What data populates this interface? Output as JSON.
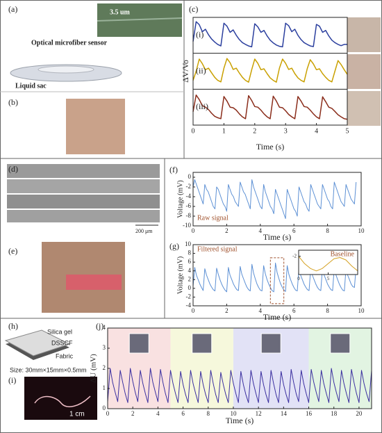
{
  "panels": [
    "(a)",
    "(b)",
    "(c)",
    "(d)",
    "(e)",
    "(f)",
    "(g)",
    "(h)",
    "(i)",
    "(j)"
  ],
  "texts": {
    "scale_a": "3.5 um",
    "sensor": "Optical microfiber sensor",
    "sac": "Liquid sac",
    "scale_d": "200 μm",
    "silica": "Silica gel",
    "dsscf": "DSSCF",
    "fabric": "Fabric",
    "size": "Size: 30mm×15mm×0.5mm",
    "cm": "1 cm"
  },
  "chart_data": [
    {
      "type": "line",
      "ylabel": "ΔV/Vo",
      "xlabel": "Time (s)",
      "xlim": [
        0,
        5
      ],
      "xticks": [
        0,
        1,
        2,
        3,
        4,
        5
      ],
      "ylim": [
        0,
        1
      ],
      "x": [
        0,
        0.1,
        0.2,
        0.3,
        0.4,
        0.5,
        0.6,
        0.7,
        0.8,
        0.9,
        1,
        1.1,
        1.2,
        1.3,
        1.4,
        1.5,
        1.6,
        1.7,
        1.8,
        1.9,
        2,
        2.1,
        2.2,
        2.3,
        2.4,
        2.5,
        2.6,
        2.7,
        2.8,
        2.9,
        3,
        3.1,
        3.2,
        3.3,
        3.4,
        3.5,
        3.6,
        3.7,
        3.8,
        3.9,
        4,
        4.1,
        4.2,
        4.3,
        4.4,
        4.5,
        4.6,
        4.7,
        4.8,
        4.9,
        5
      ],
      "series": [
        {
          "name": "(i)",
          "color": "#2b3f9e",
          "values": [
            0.3,
            0.95,
            0.85,
            0.62,
            0.7,
            0.52,
            0.38,
            0.28,
            0.2,
            0.15,
            0.9,
            0.8,
            0.6,
            0.68,
            0.5,
            0.36,
            0.26,
            0.2,
            0.15,
            0.12,
            0.88,
            0.78,
            0.6,
            0.66,
            0.48,
            0.34,
            0.25,
            0.18,
            0.14,
            0.12,
            0.9,
            0.82,
            0.62,
            0.7,
            0.5,
            0.36,
            0.26,
            0.2,
            0.15,
            0.13,
            0.86,
            0.8,
            0.6,
            0.66,
            0.48,
            0.34,
            0.26,
            0.2,
            0.16,
            0.2,
            0.2
          ]
        },
        {
          "name": "(ii)",
          "color": "#c9a000",
          "values": [
            0.2,
            0.5,
            0.9,
            0.75,
            0.55,
            0.6,
            0.45,
            0.3,
            0.2,
            0.15,
            0.6,
            0.92,
            0.78,
            0.56,
            0.6,
            0.44,
            0.3,
            0.2,
            0.14,
            0.55,
            0.9,
            0.76,
            0.55,
            0.58,
            0.42,
            0.28,
            0.2,
            0.14,
            0.6,
            0.9,
            0.76,
            0.56,
            0.6,
            0.42,
            0.28,
            0.2,
            0.15,
            0.58,
            0.88,
            0.74,
            0.55,
            0.58,
            0.42,
            0.3,
            0.2,
            0.15,
            0.5,
            0.85,
            0.72,
            0.55,
            0.4
          ]
        },
        {
          "name": "(iii)",
          "color": "#8a2c1a",
          "values": [
            0.35,
            0.9,
            0.75,
            0.55,
            0.5,
            0.42,
            0.3,
            0.2,
            0.15,
            0.12,
            0.85,
            0.7,
            0.5,
            0.48,
            0.4,
            0.28,
            0.18,
            0.12,
            0.88,
            0.72,
            0.52,
            0.5,
            0.4,
            0.28,
            0.18,
            0.12,
            0.86,
            0.7,
            0.5,
            0.48,
            0.38,
            0.26,
            0.18,
            0.12,
            0.85,
            0.7,
            0.52,
            0.5,
            0.4,
            0.28,
            0.18,
            0.12,
            0.84,
            0.68,
            0.5,
            0.46,
            0.36,
            0.25,
            0.18,
            0.12,
            0.1
          ]
        }
      ]
    },
    {
      "type": "line",
      "annotation": "Raw signal",
      "ylabel": "Voltage (mV)",
      "xlabel": "Time (s)",
      "color": "#5b8fd4",
      "xlim": [
        0,
        10
      ],
      "xticks": [
        0,
        2,
        4,
        6,
        8,
        10
      ],
      "ylim": [
        -10,
        1
      ],
      "yticks": [
        -10,
        -8,
        -6,
        -4,
        -2,
        0
      ],
      "x": [
        0,
        0.1,
        0.2,
        0.3,
        0.4,
        0.5,
        0.6,
        0.7,
        0.8,
        0.9,
        1,
        1.1,
        1.2,
        1.3,
        1.4,
        1.5,
        1.6,
        1.7,
        1.8,
        1.9,
        2,
        2.1,
        2.2,
        2.3,
        2.4,
        2.5,
        2.6,
        2.7,
        2.8,
        2.9,
        3,
        3.1,
        3.2,
        3.3,
        3.4,
        3.5,
        3.6,
        3.7,
        3.8,
        3.9,
        4,
        4.1,
        4.2,
        4.3,
        4.4,
        4.5,
        4.6,
        4.7,
        4.8,
        4.9,
        5,
        5.1,
        5.2,
        5.3,
        5.4,
        5.5,
        5.6,
        5.7,
        5.8,
        5.9,
        6,
        6.1,
        6.2,
        6.3,
        6.4,
        6.5,
        6.6,
        6.7,
        6.8,
        6.9,
        7,
        7.1,
        7.2,
        7.3,
        7.4,
        7.5,
        7.6,
        7.7,
        7.8,
        7.9,
        8,
        8.1,
        8.2,
        8.3,
        8.4,
        8.5,
        8.6,
        8.7,
        8.8,
        8.9,
        9,
        9.1,
        9.2,
        9.3,
        9.4,
        9.5,
        9.6,
        9.7
      ],
      "values": [
        -2,
        -0.5,
        -1.5,
        -2.5,
        -3.5,
        -4.5,
        -5.5,
        -1.5,
        -2.5,
        -3,
        -4,
        -5,
        -6,
        -6.5,
        -2,
        -2.5,
        -3.5,
        -4.5,
        -5.5,
        -6,
        -7,
        -1.5,
        -2.5,
        -3.5,
        -4,
        -5,
        -5.5,
        -6,
        -1,
        -2,
        -3,
        -3.5,
        -4.5,
        -5.5,
        -6.5,
        -0.5,
        -2,
        -3,
        -4,
        -5,
        -6,
        -6.5,
        -1.5,
        -3,
        -4,
        -5,
        -6,
        -6.5,
        -7.5,
        -2.5,
        -3.5,
        -4.5,
        -5.5,
        -6.5,
        -7.5,
        -8.5,
        -2.5,
        -3.5,
        -4.5,
        -5.5,
        -6.5,
        -7,
        -8,
        -2,
        -3,
        -4,
        -5,
        -5.5,
        -6.5,
        -7,
        -1.5,
        -2.5,
        -3.5,
        -4.5,
        -5.5,
        -6,
        -6.5,
        -1.5,
        -2.5,
        -3.5,
        -4.5,
        -5,
        -6,
        -6.5,
        -1,
        -2,
        -3,
        -4,
        -5,
        -5.5,
        -6,
        -1.5,
        -2.5,
        -3.5,
        -4.5,
        -5,
        -5.5,
        -1
      ]
    },
    {
      "type": "line",
      "annotation": "Filtered signal",
      "ylabel": "Voltage (mV)",
      "xlabel": "Time (s)",
      "color": "#5b8fd4",
      "xlim": [
        0,
        10
      ],
      "xticks": [
        0,
        2,
        4,
        6,
        8,
        10
      ],
      "ylim": [
        -4,
        10
      ],
      "yticks": [
        -4,
        -2,
        0,
        2,
        4,
        6,
        8,
        10
      ],
      "highlight": {
        "x": [
          4.6,
          5.4
        ],
        "y": [
          -3.5,
          7
        ]
      },
      "x": [
        0,
        0.1,
        0.2,
        0.3,
        0.4,
        0.5,
        0.6,
        0.7,
        0.8,
        0.9,
        1,
        1.1,
        1.2,
        1.3,
        1.4,
        1.5,
        1.6,
        1.7,
        1.8,
        1.9,
        2,
        2.1,
        2.2,
        2.3,
        2.4,
        2.5,
        2.6,
        2.7,
        2.8,
        2.9,
        3,
        3.1,
        3.2,
        3.3,
        3.4,
        3.5,
        3.6,
        3.7,
        3.8,
        3.9,
        4,
        4.1,
        4.2,
        4.3,
        4.4,
        4.5,
        4.6,
        4.7,
        4.8,
        4.9,
        5,
        5.1,
        5.2,
        5.3,
        5.4,
        5.5,
        5.6,
        5.7,
        5.8,
        5.9,
        6,
        6.1,
        6.2,
        6.3,
        6.4,
        6.5,
        6.6,
        6.7,
        6.8,
        6.9,
        7,
        7.1,
        7.2,
        7.3,
        7.4,
        7.5,
        7.6,
        7.7,
        7.8,
        7.9,
        8,
        8.1,
        8.2,
        8.3,
        8.4,
        8.5,
        8.6,
        8.7,
        8.8,
        8.9,
        9,
        9.1,
        9.2,
        9.3,
        9.4,
        9.5,
        9.6,
        9.7
      ],
      "values": [
        0.5,
        4.8,
        3,
        2,
        1,
        0.2,
        -0.5,
        4.5,
        3,
        2,
        1,
        0.3,
        -0.3,
        -0.6,
        4.6,
        3.2,
        2,
        1,
        0.2,
        -0.4,
        -0.8,
        4.8,
        3,
        2,
        1,
        0.3,
        -0.3,
        -0.5,
        5,
        3.2,
        2.2,
        1.2,
        0.3,
        -0.3,
        -0.6,
        5.5,
        3.5,
        2.2,
        1,
        0.2,
        -0.4,
        -0.6,
        5.2,
        3.3,
        2,
        1,
        0.2,
        -0.5,
        -0.8,
        5.8,
        3.6,
        2.3,
        1.1,
        0.3,
        -0.4,
        -0.7,
        5.2,
        3.2,
        2,
        1,
        0.2,
        -0.4,
        -0.6,
        4.8,
        3,
        2,
        1,
        0.3,
        -0.3,
        -0.5,
        4.6,
        3,
        2,
        1,
        0.2,
        -0.3,
        -0.5,
        4.7,
        3,
        2,
        1,
        0.3,
        -0.3,
        -0.5,
        4.8,
        3.1,
        2,
        1,
        0.2,
        -0.4,
        -0.6,
        4.6,
        3,
        2,
        1,
        0.4,
        0.2,
        4.8
      ]
    },
    {
      "type": "line",
      "annotation": "Baseline",
      "color": "#d4a020",
      "xlim": [
        0,
        10
      ],
      "xticks": [
        0,
        5
      ],
      "ylim": [
        -3.5,
        -1.5
      ],
      "yticks": [
        -2
      ],
      "x": [
        0,
        1,
        2,
        3,
        4,
        5,
        6,
        7,
        8,
        9,
        10
      ],
      "values": [
        -2,
        -2.6,
        -3,
        -3.2,
        -3,
        -2.6,
        -2.2,
        -2.1,
        -2.3,
        -2.8,
        -3.2
      ]
    },
    {
      "type": "line",
      "ylabel": "ΔU (mV)",
      "xlabel": "Time (s)",
      "color": "#3b2fa0",
      "xlim": [
        0,
        21
      ],
      "xticks": [
        0,
        2,
        4,
        6,
        8,
        10,
        12,
        14,
        16,
        18,
        20
      ],
      "ylim": [
        0,
        4
      ],
      "yticks": [
        0,
        1,
        2,
        3,
        4
      ],
      "shaded_regions": [
        [
          0,
          5
        ],
        [
          5,
          10
        ],
        [
          10,
          16
        ],
        [
          16,
          21
        ]
      ],
      "region_colors": [
        "#f9e1e1",
        "#f6f8dc",
        "#e2e2f6",
        "#e2f4e2"
      ],
      "x": [
        0,
        0.2,
        0.4,
        0.6,
        0.8,
        1,
        1.2,
        1.4,
        1.6,
        1.8,
        2,
        2.2,
        2.4,
        2.6,
        2.8,
        3,
        3.2,
        3.4,
        3.6,
        3.8,
        4,
        4.2,
        4.4,
        4.6,
        4.8,
        5,
        5.2,
        5.4,
        5.6,
        5.8,
        6,
        6.2,
        6.4,
        6.6,
        6.8,
        7,
        7.2,
        7.4,
        7.6,
        7.8,
        8,
        8.2,
        8.4,
        8.6,
        8.8,
        9,
        9.2,
        9.4,
        9.6,
        9.8,
        10,
        10.2,
        10.4,
        10.6,
        10.8,
        11,
        11.2,
        11.4,
        11.6,
        11.8,
        12,
        12.2,
        12.4,
        12.6,
        12.8,
        13,
        13.2,
        13.4,
        13.6,
        13.8,
        14,
        14.2,
        14.4,
        14.6,
        14.8,
        15,
        15.2,
        15.4,
        15.6,
        15.8,
        16,
        16.2,
        16.4,
        16.6,
        16.8,
        17,
        17.2,
        17.4,
        17.6,
        17.8,
        18,
        18.2,
        18.4,
        18.6,
        18.8,
        19,
        19.2,
        19.4,
        19.6,
        19.8,
        20,
        20.2,
        20.4,
        20.6,
        20.8,
        21
      ],
      "values": [
        0.35,
        2,
        1.3,
        0.8,
        0.35,
        1.9,
        1.3,
        0.75,
        0.3,
        2,
        1.35,
        0.8,
        0.35,
        1.9,
        1.25,
        0.75,
        0.3,
        2,
        1.3,
        0.8,
        0.35,
        1.95,
        1.3,
        0.75,
        0.3,
        1.9,
        1.25,
        0.75,
        0.3,
        1.85,
        1.2,
        0.7,
        0.3,
        1.9,
        1.25,
        0.75,
        0.3,
        1.85,
        1.2,
        0.7,
        0.3,
        1.9,
        1.25,
        0.7,
        0.3,
        1.8,
        1.2,
        0.7,
        0.3,
        1.9,
        1.25,
        0.75,
        0.3,
        1.85,
        1.2,
        0.7,
        0.3,
        1.9,
        1.25,
        0.75,
        0.3,
        1.85,
        1.2,
        0.7,
        0.3,
        1.9,
        1.25,
        0.7,
        0.3,
        1.85,
        1.2,
        0.7,
        0.3,
        1.95,
        1.3,
        0.75,
        0.35,
        1.9,
        1.25,
        0.75,
        0.3,
        1.95,
        1.3,
        0.8,
        0.35,
        1.9,
        1.25,
        0.75,
        0.3,
        2,
        1.3,
        0.8,
        0.35,
        1.9,
        1.25,
        0.75,
        0.3,
        1.95,
        1.3,
        0.75,
        0.3,
        1.9,
        1.25,
        0.75,
        0.35,
        1.9
      ]
    }
  ]
}
